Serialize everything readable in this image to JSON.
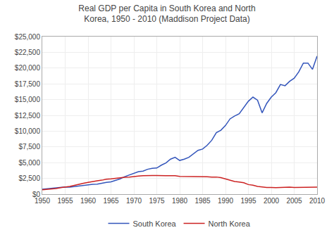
{
  "chart_data": {
    "type": "line",
    "title": "Real GDP per Capita in South Korea and North Korea, 1950 - 2010 (Maddison Project Data)",
    "x": [
      1950,
      1951,
      1952,
      1953,
      1954,
      1955,
      1956,
      1957,
      1958,
      1959,
      1960,
      1961,
      1962,
      1963,
      1964,
      1965,
      1966,
      1967,
      1968,
      1969,
      1970,
      1971,
      1972,
      1973,
      1974,
      1975,
      1976,
      1977,
      1978,
      1979,
      1980,
      1981,
      1982,
      1983,
      1984,
      1985,
      1986,
      1987,
      1988,
      1989,
      1990,
      1991,
      1992,
      1993,
      1994,
      1995,
      1996,
      1997,
      1998,
      1999,
      2000,
      2001,
      2002,
      2003,
      2004,
      2005,
      2006,
      2007,
      2008,
      2009,
      2010
    ],
    "series": [
      {
        "name": "South Korea",
        "color": "#3355bb",
        "values": [
          770,
          850,
          980,
          1050,
          1080,
          1150,
          1120,
          1220,
          1320,
          1420,
          1450,
          1560,
          1600,
          1780,
          1880,
          1950,
          2180,
          2430,
          2780,
          3050,
          3300,
          3560,
          3650,
          3950,
          4100,
          4150,
          4600,
          4950,
          5550,
          5850,
          5350,
          5550,
          5850,
          6350,
          6950,
          7150,
          7750,
          8550,
          9750,
          10150,
          10900,
          11950,
          12400,
          12750,
          13750,
          14750,
          15400,
          14900,
          12900,
          14400,
          15400,
          16100,
          17400,
          17200,
          17900,
          18400,
          19400,
          20800,
          20800,
          19800,
          21900
        ]
      },
      {
        "name": "North Korea",
        "color": "#cc2222",
        "values": [
          700,
          750,
          780,
          900,
          1020,
          1080,
          1220,
          1400,
          1600,
          1720,
          1870,
          2020,
          2120,
          2220,
          2370,
          2420,
          2520,
          2600,
          2670,
          2720,
          2820,
          2870,
          2920,
          2970,
          2970,
          2950,
          2970,
          2920,
          2920,
          2920,
          2820,
          2820,
          2770,
          2770,
          2820,
          2820,
          2770,
          2720,
          2720,
          2620,
          2420,
          2220,
          2020,
          1920,
          1820,
          1520,
          1420,
          1220,
          1120,
          1070,
          1070,
          1020,
          1070,
          1120,
          1120,
          1070,
          1070,
          1120,
          1120,
          1120,
          1120
        ]
      }
    ],
    "xlim": [
      1950,
      2010
    ],
    "xticks": [
      1950,
      1955,
      1960,
      1965,
      1970,
      1975,
      1980,
      1985,
      1990,
      1995,
      2000,
      2005,
      2010
    ],
    "ylim": [
      0,
      25000
    ],
    "yticks": [
      {
        "value": 0,
        "label": "$0"
      },
      {
        "value": 2500,
        "label": "$2,500"
      },
      {
        "value": 5000,
        "label": "$5,000"
      },
      {
        "value": 7500,
        "label": "$7,500"
      },
      {
        "value": 10000,
        "label": "$10,000"
      },
      {
        "value": 12500,
        "label": "$12,500"
      },
      {
        "value": 15000,
        "label": "$15,000"
      },
      {
        "value": 17500,
        "label": "$17,500"
      },
      {
        "value": 20000,
        "label": "$20,000"
      },
      {
        "value": 22500,
        "label": "$22,500"
      },
      {
        "value": 25000,
        "label": "$25,000"
      }
    ],
    "grid": true,
    "legend": "bottom"
  }
}
